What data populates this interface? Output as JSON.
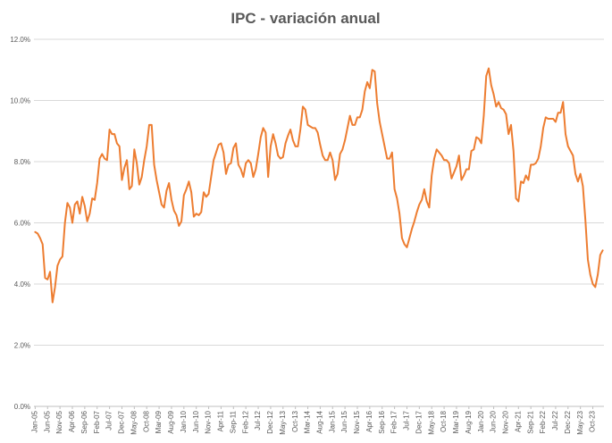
{
  "chart_data": {
    "type": "line",
    "title": "IPC - variación anual",
    "xlabel": "",
    "ylabel": "",
    "ylim": [
      0,
      12
    ],
    "y_ticks": [
      "0.0%",
      "2.0%",
      "4.0%",
      "6.0%",
      "8.0%",
      "10.0%",
      "12.0%"
    ],
    "y_tick_values": [
      0,
      2,
      4,
      6,
      8,
      10,
      12
    ],
    "x_tick_labels": [
      "Jan-05",
      "Jun-05",
      "Nov-05",
      "Apr-06",
      "Sep-06",
      "Feb-07",
      "Jul-07",
      "Dec-07",
      "May-08",
      "Oct-08",
      "Mar-09",
      "Aug-09",
      "Jan-10",
      "Jun-10",
      "Nov-10",
      "Apr-11",
      "Sep-11",
      "Feb-12",
      "Jul-12",
      "Dec-12",
      "May-13",
      "Oct-13",
      "Mar-14",
      "Aug-14",
      "Jan-15",
      "Jun-15",
      "Nov-15",
      "Apr-16",
      "Sep-16",
      "Feb-17",
      "Jul-17",
      "Dec-17",
      "May-18",
      "Oct-18",
      "Mar-19",
      "Aug-19",
      "Jan-20",
      "Jun-20",
      "Nov-20",
      "Apr-21",
      "Sep-21",
      "Feb-22",
      "Jul-22",
      "Dec-22",
      "May-23",
      "Oct-23"
    ],
    "x_tick_step_months": 5,
    "grid": true,
    "legend": "none",
    "series": [
      {
        "name": "IPC - variación anual",
        "color": "#ed7d31",
        "start": "Jan-05",
        "values": [
          5.7,
          5.65,
          5.5,
          5.3,
          4.2,
          4.15,
          4.4,
          3.4,
          3.9,
          4.6,
          4.8,
          4.9,
          6.0,
          6.65,
          6.5,
          6.0,
          6.6,
          6.7,
          6.3,
          6.85,
          6.55,
          6.05,
          6.3,
          6.8,
          6.75,
          7.3,
          8.1,
          8.25,
          8.1,
          8.05,
          9.05,
          8.9,
          8.9,
          8.6,
          8.5,
          7.4,
          7.8,
          8.05,
          7.1,
          7.2,
          8.4,
          7.95,
          7.25,
          7.5,
          8.05,
          8.5,
          9.2,
          9.2,
          7.9,
          7.4,
          7.0,
          6.6,
          6.5,
          7.05,
          7.3,
          6.75,
          6.4,
          6.25,
          5.9,
          6.05,
          6.9,
          7.1,
          7.35,
          7.0,
          6.2,
          6.3,
          6.25,
          6.35,
          7.0,
          6.85,
          6.95,
          7.5,
          8.05,
          8.3,
          8.55,
          8.6,
          8.3,
          7.6,
          7.9,
          7.95,
          8.45,
          8.6,
          7.9,
          7.75,
          7.5,
          7.95,
          8.05,
          7.95,
          7.5,
          7.75,
          8.25,
          8.8,
          9.1,
          8.95,
          7.5,
          8.5,
          8.9,
          8.6,
          8.2,
          8.1,
          8.15,
          8.6,
          8.85,
          9.05,
          8.7,
          8.5,
          8.5,
          9.05,
          9.8,
          9.7,
          9.2,
          9.15,
          9.1,
          9.1,
          8.95,
          8.55,
          8.2,
          8.05,
          8.05,
          8.3,
          8.05,
          7.4,
          7.6,
          8.25,
          8.4,
          8.7,
          9.1,
          9.5,
          9.2,
          9.2,
          9.45,
          9.45,
          9.7,
          10.3,
          10.6,
          10.4,
          11.0,
          10.95,
          9.9,
          9.3,
          8.9,
          8.5,
          8.1,
          8.1,
          8.3,
          7.1,
          6.8,
          6.3,
          5.5,
          5.3,
          5.2,
          5.5,
          5.8,
          6.05,
          6.35,
          6.6,
          6.75,
          7.1,
          6.7,
          6.5,
          7.55,
          8.1,
          8.4,
          8.3,
          8.2,
          8.05,
          8.05,
          7.95,
          7.45,
          7.65,
          7.85,
          8.2,
          7.4,
          7.55,
          7.75,
          7.75,
          8.35,
          8.4,
          8.8,
          8.75,
          8.6,
          9.5,
          10.8,
          11.05,
          10.5,
          10.2,
          9.8,
          9.95,
          9.75,
          9.7,
          9.55,
          8.9,
          9.2,
          8.35,
          6.8,
          6.7,
          7.35,
          7.3,
          7.55,
          7.4,
          7.9,
          7.9,
          7.95,
          8.1,
          8.5,
          9.1,
          9.45,
          9.4,
          9.4,
          9.4,
          9.3,
          9.6,
          9.6,
          9.95,
          8.9,
          8.5,
          8.35,
          8.2,
          7.6,
          7.35,
          7.6,
          7.2,
          6.1,
          4.8,
          4.3,
          4.0,
          3.9,
          4.3,
          4.95,
          5.1
        ]
      }
    ]
  }
}
